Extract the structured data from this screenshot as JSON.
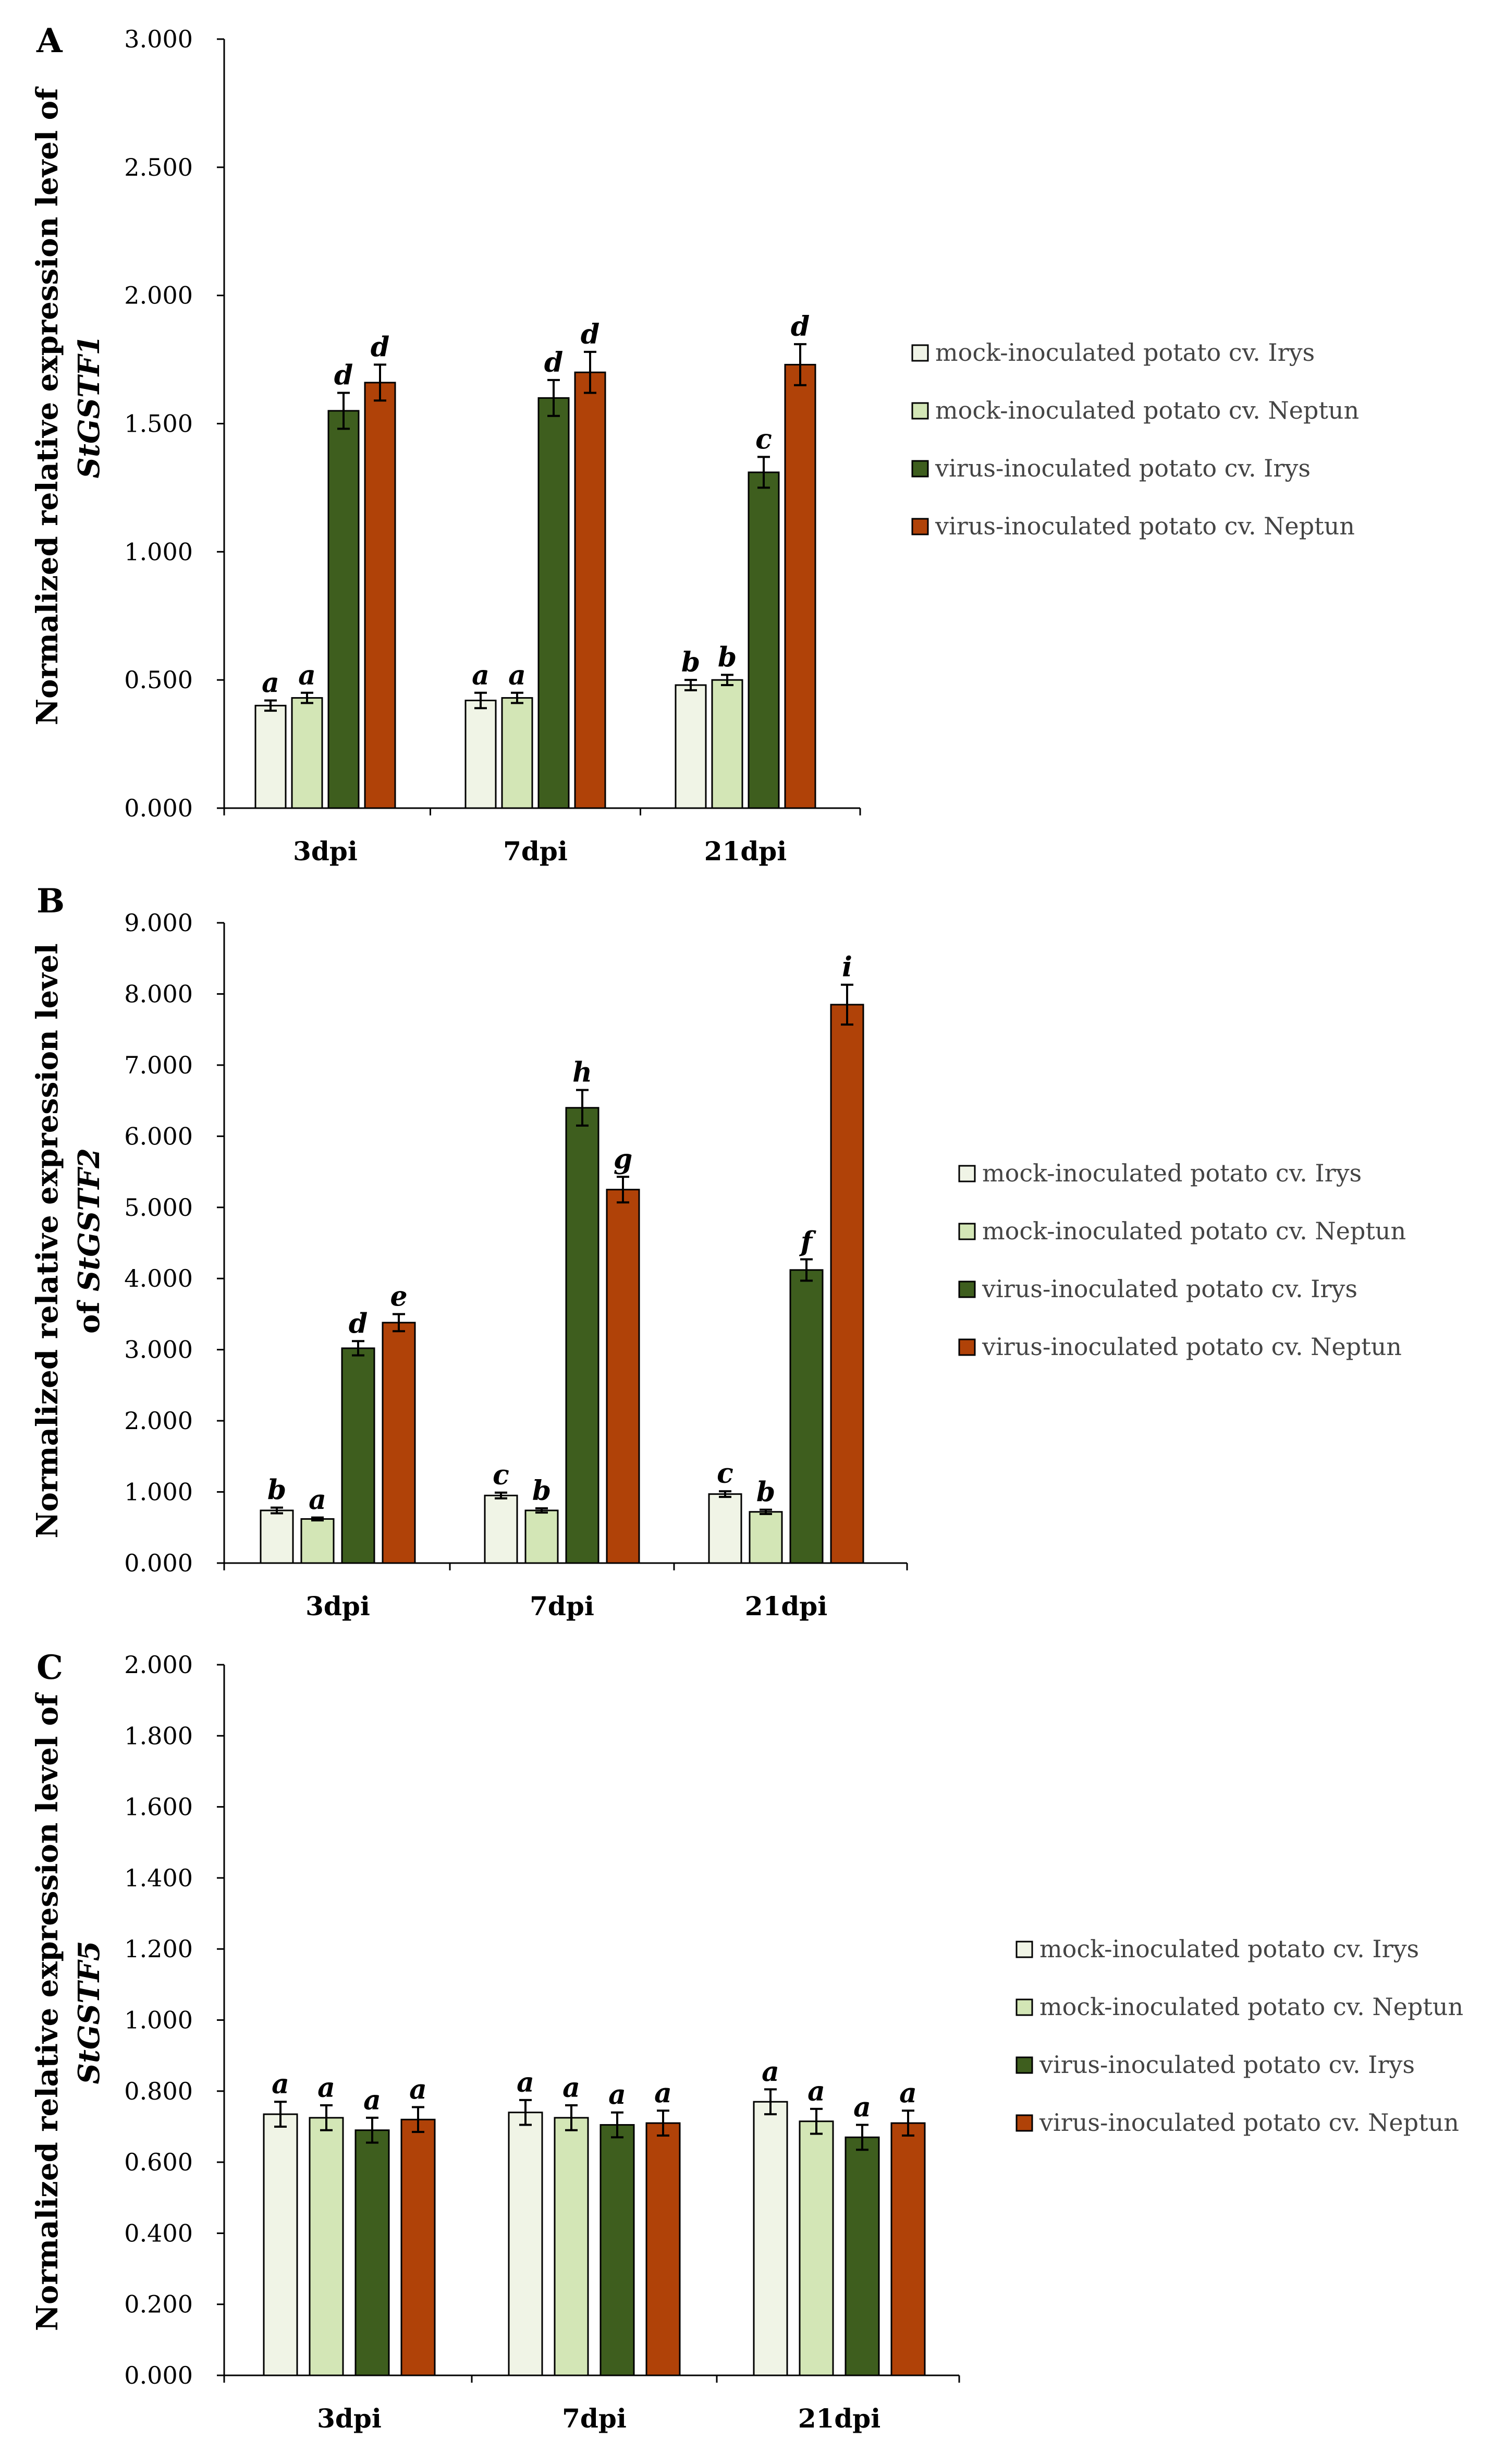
{
  "colors": {
    "mock_irys": "#f0f4e6",
    "mock_neptun": "#d3e6b6",
    "virus_irys": "#3e5e1e",
    "virus_neptun": "#b04208"
  },
  "legend_items": [
    "mock-inoculated potato cv. Irys",
    "mock-inoculated potato cv. Neptun",
    "virus-inoculated potato cv. Irys",
    "virus-inoculated potato cv. Neptun"
  ],
  "chart_data": [
    {
      "panel": "A",
      "type": "bar",
      "ylabel_line1": "Normalized  relative expression level of",
      "ylabel_gene": "StGSTF1",
      "ylim": [
        0,
        3
      ],
      "yticks": [
        0,
        0.5,
        1,
        1.5,
        2,
        2.5,
        3
      ],
      "ytick_labels": [
        "0.000",
        "0.500",
        "1.000",
        "1.500",
        "2.000",
        "2.500",
        "3.000"
      ],
      "categories": [
        "3dpi",
        "7dpi",
        "21dpi"
      ],
      "series": [
        {
          "name": "mock-inoculated potato cv. Irys",
          "values": [
            0.4,
            0.42,
            0.48
          ],
          "errors": [
            0.02,
            0.03,
            0.02
          ],
          "labels": [
            "a",
            "a",
            "b"
          ]
        },
        {
          "name": "mock-inoculated potato cv. Neptun",
          "values": [
            0.43,
            0.43,
            0.5
          ],
          "errors": [
            0.02,
            0.02,
            0.02
          ],
          "labels": [
            "a",
            "a",
            "b"
          ]
        },
        {
          "name": "virus-inoculated potato cv. Irys",
          "values": [
            1.55,
            1.6,
            1.31
          ],
          "errors": [
            0.07,
            0.07,
            0.06
          ],
          "labels": [
            "d",
            "d",
            "c"
          ]
        },
        {
          "name": "virus-inoculated potato cv. Neptun",
          "values": [
            1.66,
            1.7,
            1.73
          ],
          "errors": [
            0.07,
            0.08,
            0.08
          ],
          "labels": [
            "d",
            "d",
            "d"
          ]
        }
      ]
    },
    {
      "panel": "B",
      "type": "bar",
      "ylabel_line1": "Normalized  relative expression level",
      "ylabel_gene": "StGSTF2",
      "ylabel_prefix": "of ",
      "ylim": [
        0,
        9
      ],
      "yticks": [
        0,
        1,
        2,
        3,
        4,
        5,
        6,
        7,
        8,
        9
      ],
      "ytick_labels": [
        "0.000",
        "1.000",
        "2.000",
        "3.000",
        "4.000",
        "5.000",
        "6.000",
        "7.000",
        "8.000",
        "9.000"
      ],
      "categories": [
        "3dpi",
        "7dpi",
        "21dpi"
      ],
      "series": [
        {
          "name": "mock-inoculated potato cv. Irys",
          "values": [
            0.74,
            0.95,
            0.97
          ],
          "errors": [
            0.04,
            0.04,
            0.04
          ],
          "labels": [
            "b",
            "c",
            "c"
          ]
        },
        {
          "name": "mock-inoculated potato cv. Neptun",
          "values": [
            0.62,
            0.74,
            0.72
          ],
          "errors": [
            0.02,
            0.03,
            0.03
          ],
          "labels": [
            "a",
            "b",
            "b"
          ]
        },
        {
          "name": "virus-inoculated potato cv. Irys",
          "values": [
            3.02,
            6.4,
            4.12
          ],
          "errors": [
            0.1,
            0.25,
            0.15
          ],
          "labels": [
            "d",
            "h",
            "f"
          ]
        },
        {
          "name": "virus-inoculated potato cv. Neptun",
          "values": [
            3.38,
            5.25,
            7.85
          ],
          "errors": [
            0.12,
            0.18,
            0.28
          ],
          "labels": [
            "e",
            "g",
            "i"
          ]
        }
      ]
    },
    {
      "panel": "C",
      "type": "bar",
      "ylabel_line1": "Normalized  relative expression level of",
      "ylabel_gene": "StGSTF5",
      "ylim": [
        0,
        2
      ],
      "yticks": [
        0,
        0.2,
        0.4,
        0.6,
        0.8,
        1,
        1.2,
        1.4,
        1.6,
        1.8,
        2
      ],
      "ytick_labels": [
        "0.000",
        "0.200",
        "0.400",
        "0.600",
        "0.800",
        "1.000",
        "1.200",
        "1.400",
        "1.600",
        "1.800",
        "2.000"
      ],
      "categories": [
        "3dpi",
        "7dpi",
        "21dpi"
      ],
      "series": [
        {
          "name": "mock-inoculated potato cv. Irys",
          "values": [
            0.735,
            0.74,
            0.77
          ],
          "errors": [
            0.035,
            0.035,
            0.035
          ],
          "labels": [
            "a",
            "a",
            "a"
          ]
        },
        {
          "name": "mock-inoculated potato cv. Neptun",
          "values": [
            0.725,
            0.725,
            0.715
          ],
          "errors": [
            0.035,
            0.035,
            0.035
          ],
          "labels": [
            "a",
            "a",
            "a"
          ]
        },
        {
          "name": "virus-inoculated potato cv. Irys",
          "values": [
            0.69,
            0.705,
            0.67
          ],
          "errors": [
            0.035,
            0.035,
            0.035
          ],
          "labels": [
            "a",
            "a",
            "a"
          ]
        },
        {
          "name": "virus-inoculated potato cv. Neptun",
          "values": [
            0.72,
            0.71,
            0.71
          ],
          "errors": [
            0.035,
            0.035,
            0.035
          ],
          "labels": [
            "a",
            "a",
            "a"
          ]
        }
      ]
    }
  ]
}
